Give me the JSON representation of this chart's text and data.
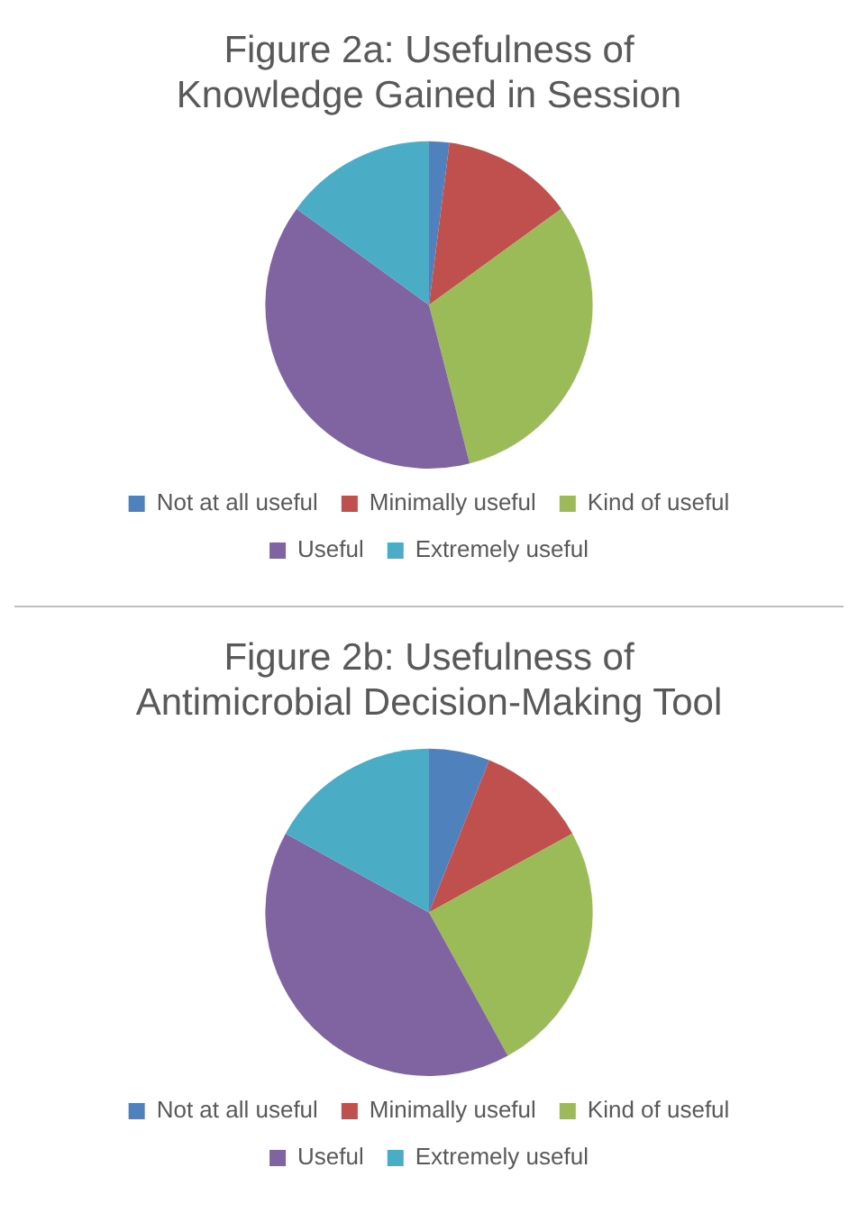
{
  "chart_data": [
    {
      "type": "pie",
      "title": "Figure 2a: Usefulness of Knowledge Gained in Session",
      "categories": [
        "Not at all useful",
        "Minimally useful",
        "Kind of useful",
        "Useful",
        "Extremely useful"
      ],
      "values": [
        2,
        13,
        31,
        39,
        15
      ],
      "colors": [
        "#4f81bd",
        "#c0504d",
        "#9bbb59",
        "#8064a2",
        "#4bacc6"
      ],
      "legend": "bottom"
    },
    {
      "type": "pie",
      "title": "Figure 2b: Usefulness of Antimicrobial Decision-Making Tool",
      "categories": [
        "Not at all useful",
        "Minimally useful",
        "Kind of useful",
        "Useful",
        "Extremely useful"
      ],
      "values": [
        6,
        11,
        25,
        41,
        17
      ],
      "colors": [
        "#4f81bd",
        "#c0504d",
        "#9bbb59",
        "#8064a2",
        "#4bacc6"
      ],
      "legend": "bottom"
    }
  ]
}
